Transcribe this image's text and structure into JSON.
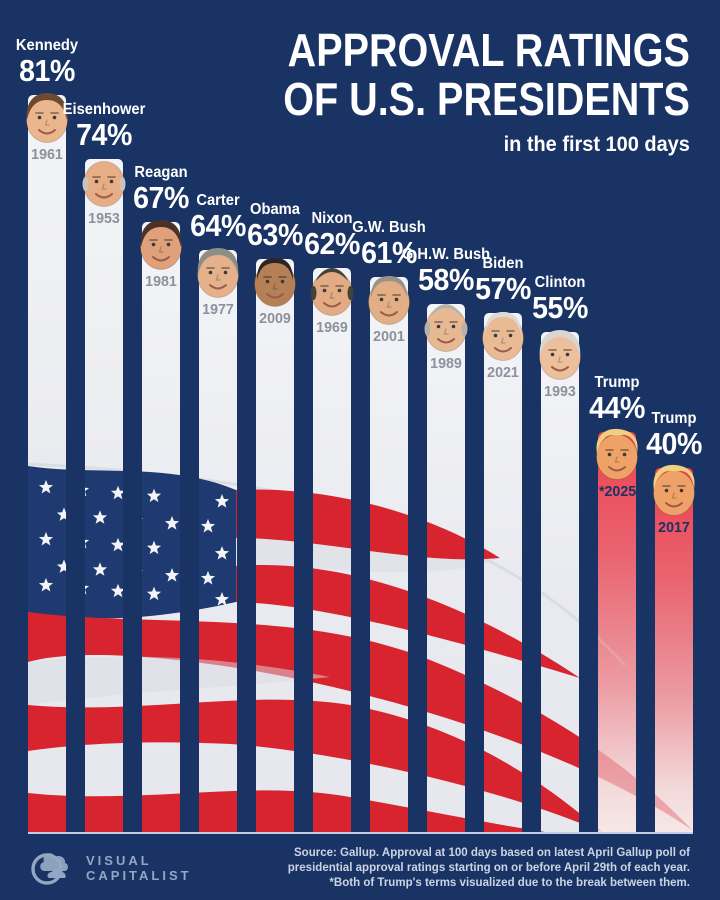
{
  "title": {
    "line1": "APPROVAL RATINGS",
    "line2": "OF U.S. PRESIDENTS",
    "subtitle": "in the first 100 days"
  },
  "footer": {
    "brand_line1": "VISUAL",
    "brand_line2": "CAPITALIST",
    "source_lines": [
      "Source: Gallup. Approval at 100 days based on latest April Gallup poll of",
      "presidential approval ratings starting on or before April 29th of each year.",
      "*Both of Trump's terms visualized due to the break between them."
    ]
  },
  "chart_data": {
    "type": "bar",
    "title": "Approval Ratings of U.S. Presidents in the first 100 days",
    "xlabel": "",
    "ylabel": "Approval rating (%)",
    "ylim": [
      0,
      100
    ],
    "unit": "%",
    "grid": false,
    "legend": null,
    "bars": [
      {
        "name": "Kennedy",
        "value": 81,
        "year": "1961",
        "highlight": false,
        "face": {
          "skin": "#eab68e",
          "hair": "#6d4a2f",
          "style": "full"
        }
      },
      {
        "name": "Eisenhower",
        "value": 74,
        "year": "1953",
        "highlight": false,
        "face": {
          "skin": "#e7ae86",
          "hair": "#c9c5be",
          "style": "bald"
        }
      },
      {
        "name": "Reagan",
        "value": 67,
        "year": "1981",
        "highlight": false,
        "face": {
          "skin": "#dfa07a",
          "hair": "#4a3326",
          "style": "full"
        }
      },
      {
        "name": "Carter",
        "value": 64,
        "year": "1977",
        "highlight": false,
        "face": {
          "skin": "#e4b18b",
          "hair": "#8e8d86",
          "style": "full"
        }
      },
      {
        "name": "Obama",
        "value": 63,
        "year": "2009",
        "highlight": false,
        "face": {
          "skin": "#b58055",
          "hair": "#2a2623",
          "style": "short"
        }
      },
      {
        "name": "Nixon",
        "value": 62,
        "year": "1969",
        "highlight": false,
        "face": {
          "skin": "#e2ab83",
          "hair": "#44403a",
          "style": "balding"
        }
      },
      {
        "name": "G.W. Bush",
        "value": 61,
        "year": "2001",
        "highlight": false,
        "face": {
          "skin": "#e2ae86",
          "hair": "#97938a",
          "style": "short"
        }
      },
      {
        "name": "G.H.W. Bush",
        "value": 58,
        "year": "1989",
        "highlight": false,
        "face": {
          "skin": "#e6b993",
          "hair": "#b5b2aa",
          "style": "balding"
        }
      },
      {
        "name": "Biden",
        "value": 57,
        "year": "2021",
        "highlight": false,
        "face": {
          "skin": "#e9bb95",
          "hair": "#dbdad5",
          "style": "short"
        }
      },
      {
        "name": "Clinton",
        "value": 55,
        "year": "1993",
        "highlight": false,
        "face": {
          "skin": "#ecc09c",
          "hair": "#d8d6d0",
          "style": "full"
        }
      },
      {
        "name": "Trump",
        "value": 44,
        "year": "*2025",
        "highlight": true,
        "face": {
          "skin": "#efa267",
          "hair": "#f2cf7e",
          "style": "swept"
        }
      },
      {
        "name": "Trump",
        "value": 40,
        "year": "2017",
        "highlight": true,
        "face": {
          "skin": "#efa267",
          "hair": "#f2cf7e",
          "style": "swept"
        }
      }
    ]
  },
  "colors": {
    "background": "#1a3365",
    "bar": "#ebedf1",
    "flag_red": "#d8242f",
    "canton_blue": "#1e3a70",
    "star_white": "#f2f4f7",
    "trump_bar_top": "#ee4150",
    "trump_bar_bottom": "#f6e7e6",
    "year_text": "#8d919e",
    "year_text_trump": "#1a3365",
    "label_text": "#ffffff",
    "logo": "#93a7c3",
    "source_text": "#ccd4e3",
    "baseline": "#c9d8ea"
  }
}
